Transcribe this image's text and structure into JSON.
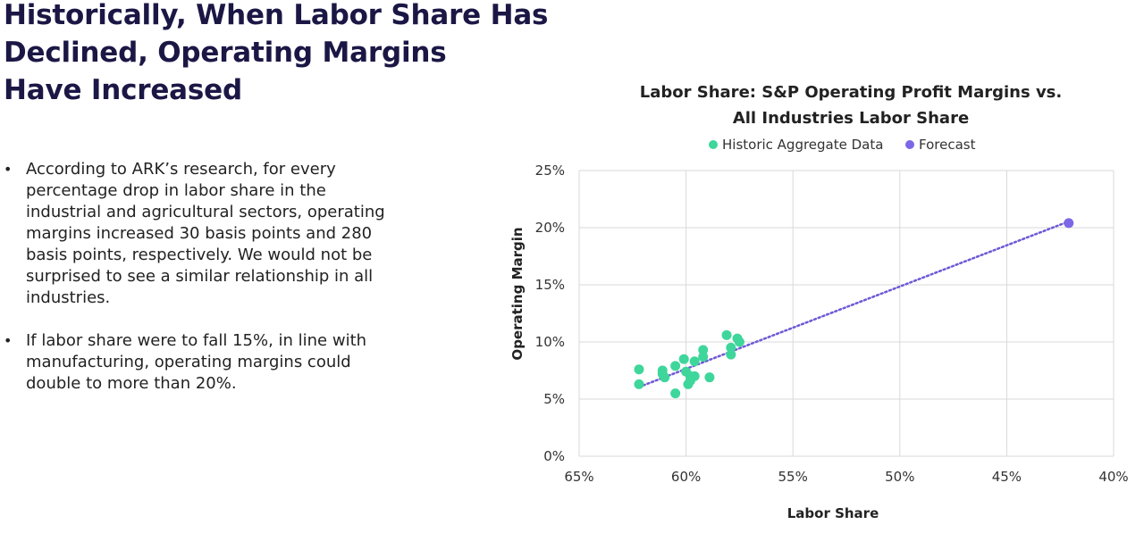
{
  "page": {
    "title_lines": [
      "Historically, When Labor Share Has",
      "Declined, Operating Margins",
      "Have Increased"
    ],
    "bullets": [
      "According to ARK’s research, for every percentage drop in labor share in the industrial and agricultural sectors, operating margins increased 30 basis points and 280 basis points, respectively. We would not be surprised to see a similar relationship in all industries.",
      "If labor share were to fall 15%, in line with manufacturing, operating margins could double to more than 20%."
    ],
    "bullet_symbol": "•"
  },
  "colors": {
    "historic": "#3ed69b",
    "forecast": "#7b68e6",
    "trendline": "#6e58d6",
    "grid": "#d9d9d9",
    "title": "#1b1745"
  },
  "chart_data": {
    "type": "scatter",
    "title_lines": [
      "Labor Share: S&P Operating Profit Margins vs.",
      "All Industries Labor Share"
    ],
    "xlabel": "Labor Share",
    "ylabel": "Operating Margin",
    "x_reversed": true,
    "xlim": [
      65,
      40
    ],
    "ylim": [
      0,
      25
    ],
    "xticks": [
      65,
      60,
      55,
      50,
      45,
      40
    ],
    "xtick_labels": [
      "65%",
      "60%",
      "55%",
      "50%",
      "45%",
      "40%"
    ],
    "yticks": [
      0,
      5,
      10,
      15,
      20,
      25
    ],
    "ytick_labels": [
      "0%",
      "5%",
      "10%",
      "15%",
      "20%",
      "25%"
    ],
    "legend_position": "top-center",
    "series": [
      {
        "name": "Historic Aggregate Data",
        "color_key": "historic",
        "points": [
          [
            62.2,
            7.6
          ],
          [
            62.2,
            6.3
          ],
          [
            61.1,
            7.5
          ],
          [
            61.1,
            7.2
          ],
          [
            61.0,
            6.9
          ],
          [
            60.5,
            7.9
          ],
          [
            60.1,
            8.5
          ],
          [
            60.0,
            7.4
          ],
          [
            59.9,
            6.3
          ],
          [
            59.8,
            7.0
          ],
          [
            59.8,
            6.6
          ],
          [
            59.6,
            7.0
          ],
          [
            59.6,
            8.3
          ],
          [
            59.2,
            8.7
          ],
          [
            59.2,
            9.3
          ],
          [
            58.9,
            6.9
          ],
          [
            58.1,
            10.6
          ],
          [
            57.9,
            9.5
          ],
          [
            57.9,
            8.9
          ],
          [
            57.6,
            10.3
          ],
          [
            57.5,
            10.0
          ],
          [
            60.5,
            5.5
          ]
        ]
      },
      {
        "name": "Forecast",
        "color_key": "forecast",
        "points": [
          [
            42.1,
            20.4
          ]
        ]
      }
    ],
    "trendline": {
      "from": [
        62.0,
        6.2
      ],
      "to": [
        42.3,
        20.4
      ]
    }
  }
}
